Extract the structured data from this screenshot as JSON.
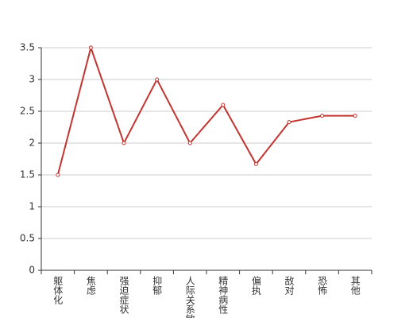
{
  "chart_data": {
    "type": "line",
    "categories": [
      "躯体化",
      "焦虑",
      "强迫症状",
      "抑郁",
      "人际关系敏感",
      "精神病性",
      "偏执",
      "敌对",
      "恐怖",
      "其他"
    ],
    "values": [
      1.5,
      3.5,
      2.0,
      3.0,
      2.0,
      2.6,
      1.67,
      2.33,
      2.43,
      2.43
    ],
    "color": "#c23531",
    "ylim": [
      0,
      3.5
    ],
    "yticks": [
      0,
      0.5,
      1,
      1.5,
      2,
      2.5,
      3,
      3.5
    ],
    "grid": true
  }
}
